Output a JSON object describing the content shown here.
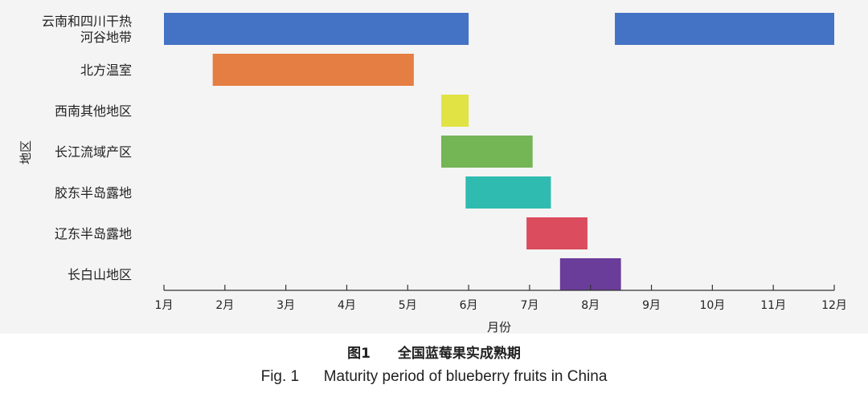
{
  "figure": {
    "caption_cn_label": "图1",
    "caption_cn_text": "全国蓝莓果实成熟期",
    "caption_en_label": "Fig. 1",
    "caption_en_text": "Maturity period of blueberry fruits in China"
  },
  "chart_data": {
    "type": "bar",
    "orientation": "horizontal-range",
    "xlabel": "月份",
    "ylabel": "地区",
    "xlim": [
      1,
      12
    ],
    "x_ticks": [
      "1月",
      "2月",
      "3月",
      "4月",
      "5月",
      "6月",
      "7月",
      "8月",
      "9月",
      "10月",
      "11月",
      "12月"
    ],
    "categories": [
      "云南和四川干热河谷地带",
      "北方温室",
      "西南其他地区",
      "长江流域产区",
      "胶东半岛露地",
      "辽东半岛露地",
      "长白山地区"
    ],
    "category_label_lines": [
      [
        "云南和四川干热",
        "河谷地带"
      ],
      [
        "北方温室"
      ],
      [
        "西南其他地区"
      ],
      [
        "长江流域产区"
      ],
      [
        "胶东半岛露地"
      ],
      [
        "辽东半岛露地"
      ],
      [
        "长白山地区"
      ]
    ],
    "ranges": [
      [
        [
          1.0,
          6.0
        ],
        [
          8.4,
          12.0
        ]
      ],
      [
        [
          1.8,
          5.1
        ]
      ],
      [
        [
          5.55,
          6.0
        ]
      ],
      [
        [
          5.55,
          7.05
        ]
      ],
      [
        [
          5.95,
          7.35
        ]
      ],
      [
        [
          6.95,
          7.95
        ]
      ],
      [
        [
          7.5,
          8.5
        ]
      ]
    ],
    "colors": [
      "#4472c4",
      "#e57e42",
      "#e1e344",
      "#74b555",
      "#2fbbb0",
      "#da4c5e",
      "#6a3d9a"
    ],
    "grid": false,
    "legend": "none"
  }
}
